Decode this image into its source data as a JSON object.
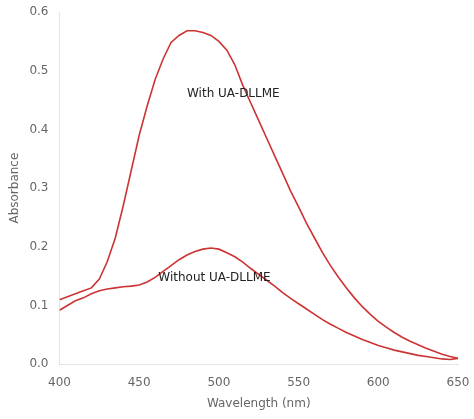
{
  "chart_data": {
    "type": "line",
    "xlabel": "Wavelength (nm)",
    "ylabel": "Absorbance",
    "xlim": [
      400,
      650
    ],
    "ylim": [
      0,
      0.6
    ],
    "xticks": [
      400,
      450,
      500,
      550,
      600,
      650
    ],
    "yticks": [
      {
        "value": 0.0,
        "label": "0.0"
      },
      0.1,
      0.2,
      0.3,
      0.4,
      0.5,
      0.6
    ],
    "grid": false,
    "x": [
      400,
      405,
      410,
      415,
      420,
      425,
      430,
      435,
      440,
      445,
      450,
      455,
      460,
      465,
      470,
      475,
      480,
      485,
      490,
      495,
      500,
      505,
      510,
      515,
      520,
      525,
      530,
      535,
      540,
      545,
      550,
      555,
      560,
      565,
      570,
      575,
      580,
      585,
      590,
      595,
      600,
      605,
      610,
      615,
      620,
      625,
      630,
      635,
      640,
      645,
      650
    ],
    "series": [
      {
        "color": "#cd3333",
        "values": [
          0.11,
          0.115,
          0.12,
          0.125,
          0.13,
          0.145,
          0.175,
          0.215,
          0.27,
          0.33,
          0.39,
          0.44,
          0.485,
          0.52,
          0.548,
          0.56,
          0.568,
          0.568,
          0.565,
          0.56,
          0.55,
          0.535,
          0.51,
          0.475,
          0.445,
          0.415,
          0.385,
          0.355,
          0.325,
          0.295,
          0.268,
          0.24,
          0.215,
          0.19,
          0.168,
          0.148,
          0.13,
          0.113,
          0.098,
          0.085,
          0.073,
          0.063,
          0.054,
          0.046,
          0.039,
          0.033,
          0.027,
          0.022,
          0.017,
          0.013,
          0.01
        ]
      },
      {
        "color": "#cd3333",
        "values": [
          0.092,
          0.1,
          0.108,
          0.113,
          0.12,
          0.125,
          0.128,
          0.13,
          0.132,
          0.133,
          0.135,
          0.14,
          0.148,
          0.158,
          0.168,
          0.178,
          0.186,
          0.192,
          0.196,
          0.198,
          0.196,
          0.19,
          0.183,
          0.174,
          0.163,
          0.153,
          0.143,
          0.133,
          0.122,
          0.112,
          0.103,
          0.094,
          0.085,
          0.076,
          0.068,
          0.061,
          0.054,
          0.048,
          0.042,
          0.037,
          0.032,
          0.028,
          0.024,
          0.021,
          0.018,
          0.015,
          0.013,
          0.011,
          0.009,
          0.008,
          0.01
        ]
      }
    ],
    "annotations": [
      {
        "text": "With UA-DLLME",
        "x": 480,
        "y": 0.455
      },
      {
        "text": "Without UA-DLLME",
        "x": 462,
        "y": 0.142
      }
    ]
  }
}
